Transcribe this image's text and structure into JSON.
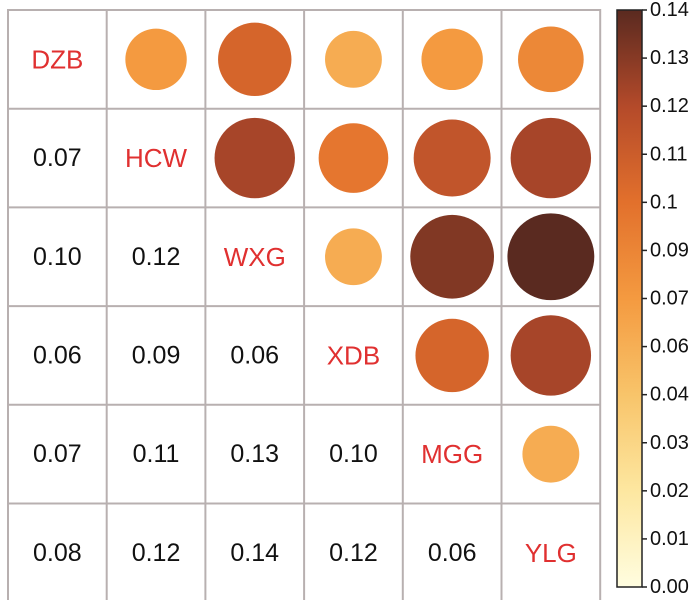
{
  "chart_data": {
    "type": "heatmap",
    "variables": [
      "DZB",
      "HCW",
      "WXG",
      "XDB",
      "MGG",
      "YLG"
    ],
    "matrix": [
      [
        null,
        0.07,
        0.1,
        0.06,
        0.07,
        0.08
      ],
      [
        0.07,
        null,
        0.12,
        0.09,
        0.11,
        0.12
      ],
      [
        0.1,
        0.12,
        null,
        0.06,
        0.13,
        0.14
      ],
      [
        0.06,
        0.09,
        0.06,
        null,
        0.1,
        0.12
      ],
      [
        0.07,
        0.11,
        0.13,
        0.1,
        null,
        0.06
      ],
      [
        0.08,
        0.12,
        0.14,
        0.12,
        0.06,
        null
      ]
    ],
    "lower_labels": [
      {
        "row": 1,
        "col": 0,
        "text": "0.07"
      },
      {
        "row": 2,
        "col": 0,
        "text": "0.10"
      },
      {
        "row": 2,
        "col": 1,
        "text": "0.12"
      },
      {
        "row": 3,
        "col": 0,
        "text": "0.06"
      },
      {
        "row": 3,
        "col": 1,
        "text": "0.09"
      },
      {
        "row": 3,
        "col": 2,
        "text": "0.06"
      },
      {
        "row": 4,
        "col": 0,
        "text": "0.07"
      },
      {
        "row": 4,
        "col": 1,
        "text": "0.11"
      },
      {
        "row": 4,
        "col": 2,
        "text": "0.13"
      },
      {
        "row": 4,
        "col": 3,
        "text": "0.10"
      },
      {
        "row": 5,
        "col": 0,
        "text": "0.08"
      },
      {
        "row": 5,
        "col": 1,
        "text": "0.12"
      },
      {
        "row": 5,
        "col": 2,
        "text": "0.14"
      },
      {
        "row": 5,
        "col": 3,
        "text": "0.12"
      },
      {
        "row": 5,
        "col": 4,
        "text": "0.06"
      }
    ],
    "upper_display": "circles",
    "lower_display": "numbers",
    "colorbar": {
      "range": [
        0,
        0.14
      ],
      "ticks": [
        "0.00",
        "0.01",
        "0.02",
        "0.03",
        "0.04",
        "0.06",
        "0.07",
        "0.09",
        "0.1",
        "0.11",
        "0.12",
        "0.13",
        "0.14"
      ],
      "colors": [
        "#fffde0",
        "#fde7a0",
        "#f8c46a",
        "#f49a40",
        "#e2702c",
        "#b44a2a",
        "#5a2a20"
      ]
    },
    "colors": {
      "diagonal_label": "#e03030",
      "grid": "#b8b0b0",
      "text": "#111111"
    }
  }
}
